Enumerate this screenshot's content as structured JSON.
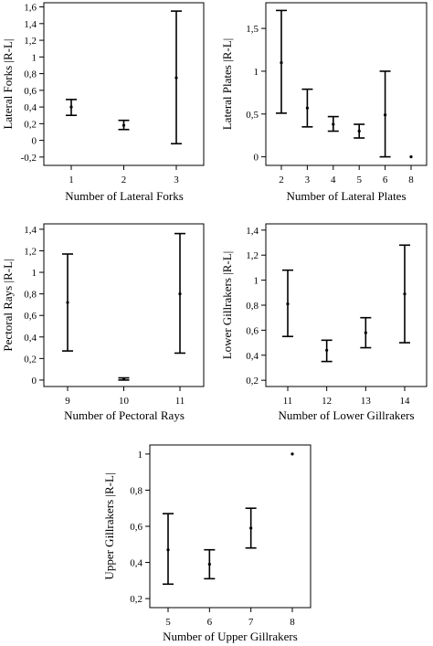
{
  "chart_data": [
    {
      "type": "errorbar",
      "xlabel": "Number of Lateral Forks",
      "ylabel": "Lateral Forks |R-L|",
      "ylim": [
        -0.3,
        1.65
      ],
      "yticks": [
        "-0,2",
        "0",
        "0,2",
        "0,4",
        "0,6",
        "0,8",
        "1",
        "1,2",
        "1,4",
        "1,6"
      ],
      "categories": [
        "1",
        "2",
        "3"
      ],
      "points": [
        {
          "x": "1",
          "mean": 0.4,
          "low": 0.3,
          "high": 0.49
        },
        {
          "x": "2",
          "mean": 0.18,
          "low": 0.13,
          "high": 0.24
        },
        {
          "x": "3",
          "mean": 0.75,
          "low": -0.04,
          "high": 1.55
        }
      ]
    },
    {
      "type": "errorbar",
      "xlabel": "Number of Lateral Plates",
      "ylabel": "Lateral Plates |R-L|",
      "ylim": [
        -0.1,
        1.8
      ],
      "yticks": [
        "0",
        "0,5",
        "1",
        "1,5"
      ],
      "categories": [
        "2",
        "3",
        "4",
        "5",
        "6",
        "8"
      ],
      "points": [
        {
          "x": "2",
          "mean": 1.1,
          "low": 0.51,
          "high": 1.71
        },
        {
          "x": "3",
          "mean": 0.57,
          "low": 0.35,
          "high": 0.79
        },
        {
          "x": "4",
          "mean": 0.38,
          "low": 0.3,
          "high": 0.47
        },
        {
          "x": "5",
          "mean": 0.3,
          "low": 0.22,
          "high": 0.38
        },
        {
          "x": "6",
          "mean": 0.49,
          "low": 0.0,
          "high": 1.0
        },
        {
          "x": "8",
          "mean": 0.0,
          "low": 0.0,
          "high": 0.0
        }
      ]
    },
    {
      "type": "errorbar",
      "xlabel": "Number of Pectoral Rays",
      "ylabel": "Pectoral Rays |R-L|",
      "ylim": [
        -0.06,
        1.45
      ],
      "yticks": [
        "0",
        "0,2",
        "0,4",
        "0,6",
        "0,8",
        "1",
        "1,2",
        "1,4"
      ],
      "categories": [
        "9",
        "10",
        "11"
      ],
      "points": [
        {
          "x": "9",
          "mean": 0.72,
          "low": 0.27,
          "high": 1.17
        },
        {
          "x": "10",
          "mean": 0.01,
          "low": 0.0,
          "high": 0.02
        },
        {
          "x": "11",
          "mean": 0.8,
          "low": 0.25,
          "high": 1.36
        }
      ]
    },
    {
      "type": "errorbar",
      "xlabel": "Number of Lower Gillrakers",
      "ylabel": "Lower Gillrakers |R-L|",
      "ylim": [
        0.15,
        1.45
      ],
      "yticks": [
        "0,2",
        "0,4",
        "0,6",
        "0,8",
        "1",
        "1,2",
        "1,4"
      ],
      "categories": [
        "11",
        "12",
        "13",
        "14"
      ],
      "points": [
        {
          "x": "11",
          "mean": 0.81,
          "low": 0.55,
          "high": 1.08
        },
        {
          "x": "12",
          "mean": 0.44,
          "low": 0.35,
          "high": 0.52
        },
        {
          "x": "13",
          "mean": 0.58,
          "low": 0.46,
          "high": 0.7
        },
        {
          "x": "14",
          "mean": 0.89,
          "low": 0.5,
          "high": 1.28
        }
      ]
    },
    {
      "type": "errorbar",
      "xlabel": "Number of Upper Gillrakers",
      "ylabel": "Upper Gillrakers |R-L|",
      "ylim": [
        0.15,
        1.05
      ],
      "yticks": [
        "0,2",
        "0,4",
        "0,6",
        "0,8",
        "1"
      ],
      "categories": [
        "5",
        "6",
        "7",
        "8"
      ],
      "points": [
        {
          "x": "5",
          "mean": 0.47,
          "low": 0.28,
          "high": 0.67
        },
        {
          "x": "6",
          "mean": 0.39,
          "low": 0.31,
          "high": 0.47
        },
        {
          "x": "7",
          "mean": 0.59,
          "low": 0.48,
          "high": 0.7
        },
        {
          "x": "8",
          "mean": 1.0,
          "low": 1.0,
          "high": 1.0
        }
      ]
    }
  ]
}
